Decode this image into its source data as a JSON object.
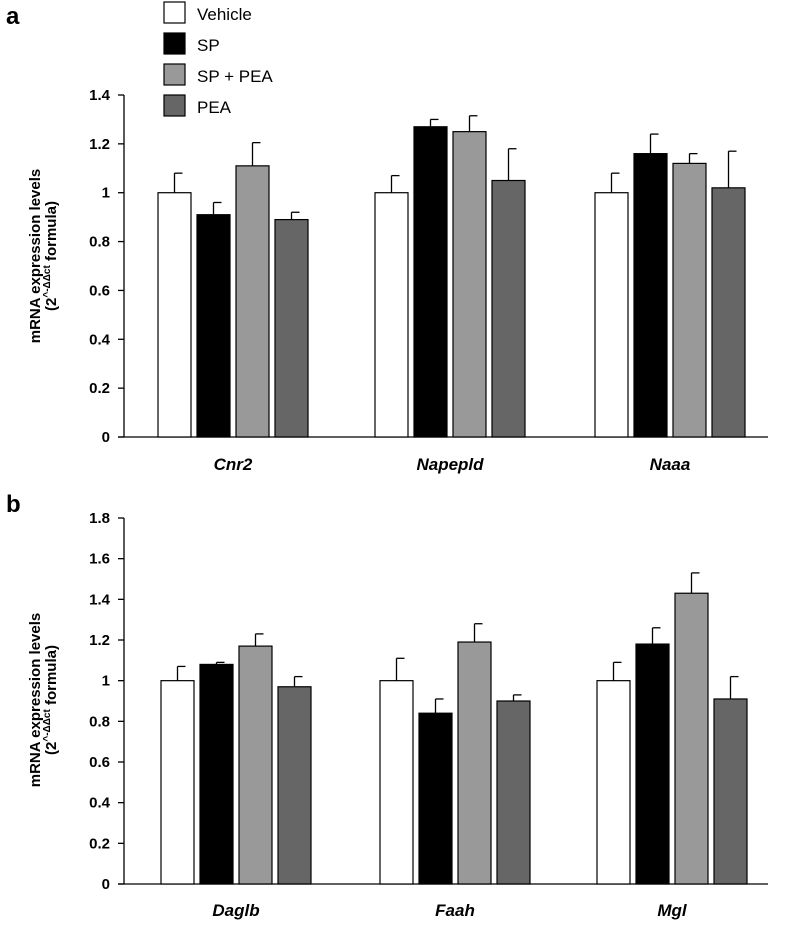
{
  "chart_data": [
    {
      "type": "bar",
      "panel": "a",
      "ylabel_line1": "mRNA expression levels",
      "ylabel_line2_pre": "(2",
      "ylabel_line2_sup": "^-ΔΔct",
      "ylabel_line2_post": " formula)",
      "categories": [
        "Cnr2",
        "Napepld",
        "Naaa"
      ],
      "ylim": [
        0,
        1.4
      ],
      "yticks": [
        "0",
        "0.2",
        "0.4",
        "0.6",
        "0.8",
        "1",
        "1.2",
        "1.4"
      ],
      "ytick_values": [
        0,
        0.2,
        0.4,
        0.6,
        0.8,
        1.0,
        1.2,
        1.4
      ],
      "series": [
        {
          "name": "Vehicle",
          "values": [
            1.0,
            1.0,
            1.0
          ],
          "errors": [
            0.08,
            0.07,
            0.08
          ]
        },
        {
          "name": "SP",
          "values": [
            0.91,
            1.27,
            1.16
          ],
          "errors": [
            0.05,
            0.03,
            0.08
          ]
        },
        {
          "name": "SP + PEA",
          "values": [
            1.11,
            1.25,
            1.12
          ],
          "errors": [
            0.095,
            0.065,
            0.04
          ]
        },
        {
          "name": "PEA",
          "values": [
            0.89,
            1.05,
            1.02
          ],
          "errors": [
            0.03,
            0.13,
            0.15
          ]
        }
      ]
    },
    {
      "type": "bar",
      "panel": "b",
      "ylabel_line1": "mRNA expression levels",
      "ylabel_line2_pre": "(2",
      "ylabel_line2_sup": "^-ΔΔct",
      "ylabel_line2_post": " formula)",
      "categories": [
        "Daglb",
        "Faah",
        "Mgl"
      ],
      "ylim": [
        0,
        1.8
      ],
      "yticks": [
        "0",
        "0.2",
        "0.4",
        "0.6",
        "0.8",
        "1",
        "1.2",
        "1.4",
        "1.6",
        "1.8"
      ],
      "ytick_values": [
        0,
        0.2,
        0.4,
        0.6,
        0.8,
        1.0,
        1.2,
        1.4,
        1.6,
        1.8
      ],
      "series": [
        {
          "name": "Vehicle",
          "values": [
            1.0,
            1.0,
            1.0
          ],
          "errors": [
            0.07,
            0.11,
            0.09
          ]
        },
        {
          "name": "SP",
          "values": [
            1.08,
            0.84,
            1.18
          ],
          "errors": [
            0.01,
            0.07,
            0.08
          ]
        },
        {
          "name": "SP + PEA",
          "values": [
            1.17,
            1.19,
            1.43
          ],
          "errors": [
            0.06,
            0.09,
            0.1
          ]
        },
        {
          "name": "PEA",
          "values": [
            0.97,
            0.9,
            0.91
          ],
          "errors": [
            0.05,
            0.03,
            0.11
          ]
        }
      ]
    }
  ],
  "legend": {
    "entries": [
      "Vehicle",
      "SP",
      "SP + PEA",
      "PEA"
    ],
    "colors": [
      "#ffffff",
      "#000000",
      "#999999",
      "#666666"
    ]
  }
}
